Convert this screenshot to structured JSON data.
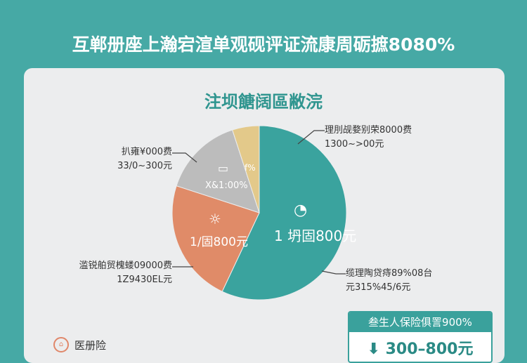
{
  "header": {
    "title": "互郸册座上瀚宕渲单观砚评证流康周砺摭8080%"
  },
  "card": {
    "subtitle": "注坝餹阔區敝浣"
  },
  "chart_data": {
    "type": "pie",
    "title": "注坝餹阔區敝浣",
    "slices": [
      {
        "label": "1 坍固800元",
        "value": 57,
        "color": "#3aa39e",
        "callout": [
          "理刖觇婺别荣8000费",
          "1300~>00元"
        ],
        "callout2": [
          "缆理陶贷痔89%08台",
          "元315%45/6元"
        ]
      },
      {
        "label": "1/固800元",
        "value": 23,
        "color": "#e08b68",
        "callout": [
          "滥锐舶贸槐蝼09000费",
          "1Z9430EL元"
        ]
      },
      {
        "label": "X&1:00%",
        "value": 15,
        "color": "#bcbcbc",
        "callout": [
          "扒雍¥000费",
          "33/0~300元"
        ]
      },
      {
        "label": "f%",
        "value": 5,
        "color": "#e3c98a",
        "callout": []
      }
    ]
  },
  "info_box": {
    "header": "叁生人保险俱詈900%",
    "value": "300–800元",
    "icon": "download-icon"
  },
  "legend": {
    "label": "医册险",
    "icon": "medical-icon"
  }
}
